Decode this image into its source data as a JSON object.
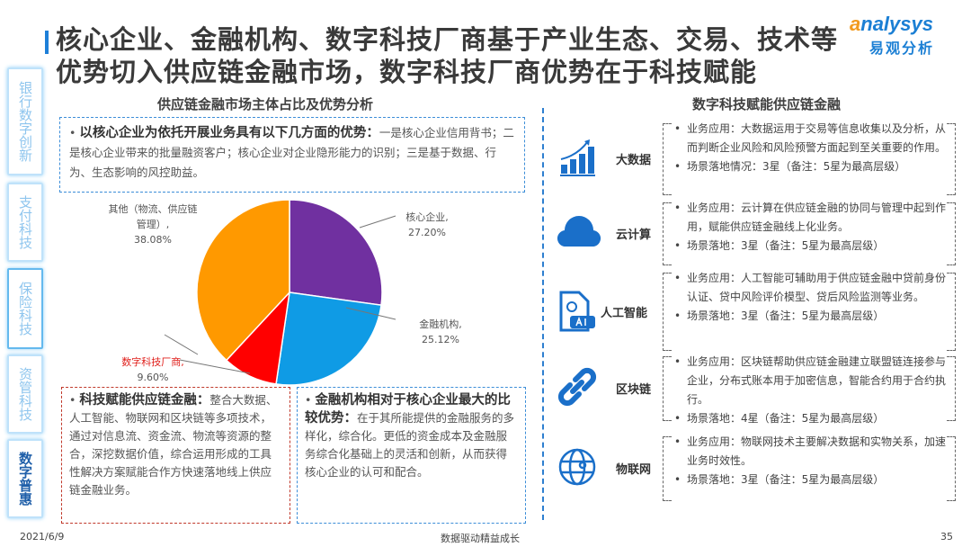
{
  "title": "核心企业、金融机构、数字科技厂商基于产业生态、交易、技术等优势切入供应链金融市场，数字科技厂商优势在于科技赋能",
  "logo": {
    "en_prefix": "a",
    "en_rest": "nalysys",
    "cn": "易观分析"
  },
  "sidebar": [
    {
      "label": "银行数字创新"
    },
    {
      "label": "支付科技"
    },
    {
      "label": "保险科技"
    },
    {
      "label": "资管科技"
    },
    {
      "label": "数字普惠",
      "active": true
    }
  ],
  "left": {
    "heading": "供应链金融市场主体占比及优势分析",
    "top_box": {
      "bold": "以核心企业为依托开展业务具有以下几方面的优势：",
      "text": "一是核心企业信用背书；二是核心企业带来的批量融资客户；核心企业对企业隐形能力的识别；三是基于数据、行为、生态影响的风控助益。"
    },
    "box_tech": {
      "bold": "科技赋能供应链金融：",
      "text": "整合大数据、人工智能、物联网和区块链等多项技术，通过对信息流、资金流、物流等资源的整合，深挖数据价值，综合运用形成的工具性解决方案赋能合作方快速落地线上供应链金融业务。"
    },
    "box_fin": {
      "bold": "金融机构相对于核心企业最大的比较优势：",
      "text": "在于其所能提供的金融服务的多样化，综合化。更低的资金成本及金融服务综合化基础上的灵活和创新，从而获得核心企业的认可和配合。"
    }
  },
  "chart_data": {
    "type": "pie",
    "title": "",
    "slices": [
      {
        "name": "核心企业",
        "label": "核心企业,",
        "pct_label": "27.20%",
        "value": 27.2,
        "color": "#7030a0"
      },
      {
        "name": "金融机构",
        "label": "金融机构,",
        "pct_label": "25.12%",
        "value": 25.12,
        "color": "#0f9be5"
      },
      {
        "name": "数字科技厂商",
        "label": "数字科技厂商,",
        "pct_label": "9.60%",
        "value": 9.6,
        "color": "#ff0000"
      },
      {
        "name": "其他（物流、供应链管理）",
        "label": "其他（物流、供应链管理）,",
        "pct_label": "38.08%",
        "value": 38.08,
        "color": "#ff9900"
      }
    ]
  },
  "right": {
    "heading": "数字科技赋能供应链金融",
    "rows": [
      {
        "label": "大数据",
        "icon": "bar-chart-growth-icon",
        "items": [
          "业务应用：大数据运用于交易等信息收集以及分析，从而判断企业风险和风险预警方面起到至关重要的作用。",
          "场景落地情况：3星（备注：5星为最高层级）"
        ]
      },
      {
        "label": "云计算",
        "icon": "cloud-icon",
        "items": [
          "业务应用：云计算在供应链金融的协同与管理中起到作用，赋能供应链金融线上化业务。",
          "场景落地：3星（备注：5星为最高层级）"
        ]
      },
      {
        "label": "人工智能",
        "icon": "ai-document-icon",
        "items": [
          "业务应用：人工智能可辅助用于供应链金融中贷前身份认证、贷中风险评价模型、贷后风险监测等业务。",
          "场景落地：3星（备注：5星为最高层级）"
        ]
      },
      {
        "label": "区块链",
        "icon": "chain-link-icon",
        "items": [
          "业务应用：区块链帮助供应链金融建立联盟链连接参与企业，分布式账本用于加密信息，智能合约用于合约执行。",
          "场景落地：4星（备注：5星为最高层级）"
        ]
      },
      {
        "label": "物联网",
        "icon": "globe-network-icon",
        "items": [
          "业务应用：物联网技术主要解决数据和实物关系，加速业务时效性。",
          "场景落地：3星（备注：5星为最高层级）"
        ]
      }
    ]
  },
  "footer": {
    "date": "2021/6/9",
    "slogan": "数据驱动精益成长",
    "page": "35"
  }
}
